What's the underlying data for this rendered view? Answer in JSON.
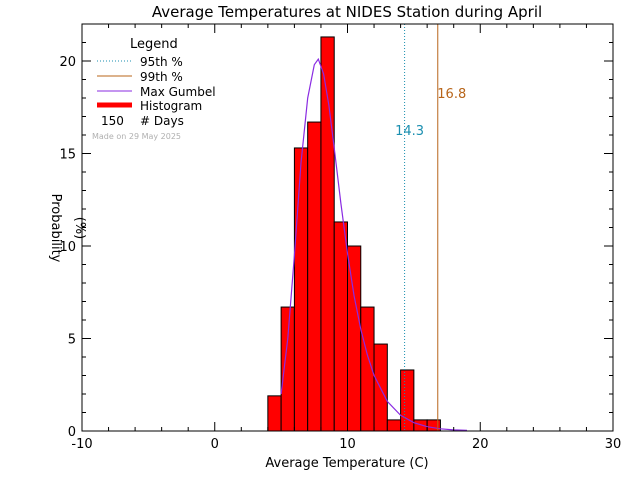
{
  "chart_data": {
    "type": "bar",
    "title": "Average Temperatures at NIDES Station during April",
    "xlabel": "Average Temperature (C)",
    "ylabel_line1": "Probability",
    "ylabel_line2": "(%)",
    "xlim": [
      -10,
      30
    ],
    "ylim": [
      0,
      22
    ],
    "x_ticks": [
      -10,
      0,
      10,
      20,
      30
    ],
    "y_ticks": [
      0,
      5,
      10,
      15,
      20
    ],
    "bin_width": 1.0,
    "bins": [
      {
        "x0": 4.0,
        "value": 1.9
      },
      {
        "x0": 5.0,
        "value": 6.7
      },
      {
        "x0": 6.0,
        "value": 15.3
      },
      {
        "x0": 7.0,
        "value": 16.7
      },
      {
        "x0": 8.0,
        "value": 21.3
      },
      {
        "x0": 9.0,
        "value": 11.3
      },
      {
        "x0": 10.0,
        "value": 10.0
      },
      {
        "x0": 11.0,
        "value": 6.7
      },
      {
        "x0": 12.0,
        "value": 4.7
      },
      {
        "x0": 13.0,
        "value": 0.6
      },
      {
        "x0": 14.0,
        "value": 3.3
      },
      {
        "x0": 15.0,
        "value": 0.6
      },
      {
        "x0": 16.0,
        "value": 0.6
      }
    ],
    "gumbel_curve": {
      "x": [
        5.0,
        5.5,
        6.0,
        6.5,
        7.0,
        7.5,
        7.8,
        8.2,
        8.6,
        9.0,
        9.5,
        10.0,
        10.5,
        11.0,
        11.5,
        12.0,
        13.0,
        14.0,
        15.0,
        16.0,
        17.0,
        18.0,
        19.0
      ],
      "y": [
        2.0,
        5.0,
        9.5,
        14.5,
        18.0,
        19.8,
        20.1,
        19.3,
        17.6,
        15.3,
        12.3,
        9.6,
        7.3,
        5.5,
        4.1,
        3.0,
        1.6,
        0.85,
        0.45,
        0.23,
        0.12,
        0.06,
        0.03
      ]
    },
    "p95": {
      "value": 14.3,
      "label": "14.3",
      "color": "#1b8fb0"
    },
    "p99": {
      "value": 16.8,
      "label": "16.8",
      "color": "#b8651a"
    },
    "colors": {
      "histogram": "#ff0000",
      "gumbel": "#8a2be2",
      "axis": "#000000"
    },
    "legend": {
      "title": "Legend",
      "placement": "top-left",
      "items": [
        {
          "label": "95th %",
          "kind": "dotted",
          "color": "#1b8fb0"
        },
        {
          "label": "99th %",
          "kind": "line",
          "color": "#b8651a"
        },
        {
          "label": "Max Gumbel",
          "kind": "line",
          "color": "#8a2be2"
        },
        {
          "label": "Histogram",
          "kind": "thick",
          "color": "#ff0000"
        }
      ],
      "days_count": "150",
      "days_label": "# Days"
    },
    "made_on": "Made on 29 May 2025"
  }
}
